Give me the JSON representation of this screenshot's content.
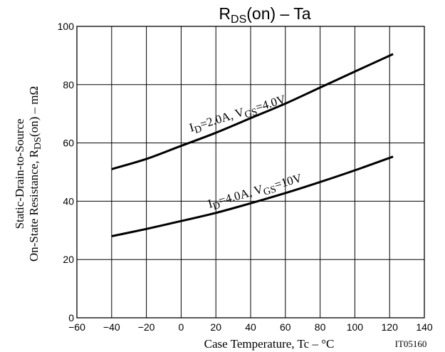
{
  "chart_data": {
    "type": "line",
    "title": "RDS(on) – Ta",
    "xlabel": "Case Temperature,  Tc  –  °C",
    "ylabel_line1": "Static-Drain-to-Source",
    "ylabel_line2": "On-State Resistance, RDS(on)  –  mΩ",
    "xlim": [
      -60,
      140
    ],
    "ylim": [
      0,
      100
    ],
    "x_ticks": [
      -60,
      -40,
      -20,
      0,
      20,
      40,
      60,
      80,
      100,
      120,
      140
    ],
    "y_ticks": [
      0,
      20,
      40,
      60,
      80,
      100
    ],
    "grid": true,
    "figure_id": "IT05160",
    "series": [
      {
        "name": "ID=2.0A, VGS=4.0V",
        "x": [
          -40,
          -20,
          0,
          20,
          40,
          60,
          80,
          100,
          122
        ],
        "y": [
          51,
          54.5,
          59,
          63.5,
          68.5,
          73.5,
          79,
          84.5,
          90.5
        ]
      },
      {
        "name": "ID=4.0A, VGS=10V",
        "x": [
          -40,
          -20,
          0,
          20,
          40,
          60,
          80,
          100,
          122
        ],
        "y": [
          28,
          30.5,
          33.2,
          36,
          39.3,
          42.8,
          46.6,
          50.6,
          55.3
        ]
      }
    ]
  }
}
